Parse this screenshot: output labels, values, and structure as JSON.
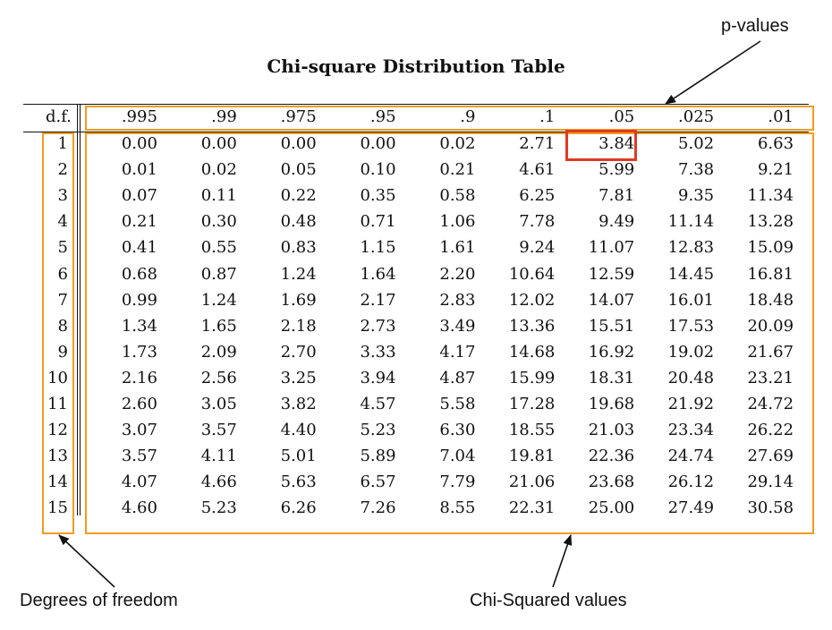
{
  "title": "Chi-square Distribution Table",
  "df_header": "d.f.",
  "p_values": [
    ".995",
    ".99",
    ".975",
    ".95",
    ".9",
    ".1",
    ".05",
    ".025",
    ".01"
  ],
  "rows": [
    {
      "df": "1",
      "values": [
        "0.00",
        "0.00",
        "0.00",
        "0.00",
        "0.02",
        "2.71",
        "3.84",
        "5.02",
        "6.63"
      ]
    },
    {
      "df": "2",
      "values": [
        "0.01",
        "0.02",
        "0.05",
        "0.10",
        "0.21",
        "4.61",
        "5.99",
        "7.38",
        "9.21"
      ]
    },
    {
      "df": "3",
      "values": [
        "0.07",
        "0.11",
        "0.22",
        "0.35",
        "0.58",
        "6.25",
        "7.81",
        "9.35",
        "11.34"
      ]
    },
    {
      "df": "4",
      "values": [
        "0.21",
        "0.30",
        "0.48",
        "0.71",
        "1.06",
        "7.78",
        "9.49",
        "11.14",
        "13.28"
      ]
    },
    {
      "df": "5",
      "values": [
        "0.41",
        "0.55",
        "0.83",
        "1.15",
        "1.61",
        "9.24",
        "11.07",
        "12.83",
        "15.09"
      ]
    },
    {
      "df": "6",
      "values": [
        "0.68",
        "0.87",
        "1.24",
        "1.64",
        "2.20",
        "10.64",
        "12.59",
        "14.45",
        "16.81"
      ]
    },
    {
      "df": "7",
      "values": [
        "0.99",
        "1.24",
        "1.69",
        "2.17",
        "2.83",
        "12.02",
        "14.07",
        "16.01",
        "18.48"
      ]
    },
    {
      "df": "8",
      "values": [
        "1.34",
        "1.65",
        "2.18",
        "2.73",
        "3.49",
        "13.36",
        "15.51",
        "17.53",
        "20.09"
      ]
    },
    {
      "df": "9",
      "values": [
        "1.73",
        "2.09",
        "2.70",
        "3.33",
        "4.17",
        "14.68",
        "16.92",
        "19.02",
        "21.67"
      ]
    },
    {
      "df": "10",
      "values": [
        "2.16",
        "2.56",
        "3.25",
        "3.94",
        "4.87",
        "15.99",
        "18.31",
        "20.48",
        "23.21"
      ]
    },
    {
      "df": "11",
      "values": [
        "2.60",
        "3.05",
        "3.82",
        "4.57",
        "5.58",
        "17.28",
        "19.68",
        "21.92",
        "24.72"
      ]
    },
    {
      "df": "12",
      "values": [
        "3.07",
        "3.57",
        "4.40",
        "5.23",
        "6.30",
        "18.55",
        "21.03",
        "23.34",
        "26.22"
      ]
    },
    {
      "df": "13",
      "values": [
        "3.57",
        "4.11",
        "5.01",
        "5.89",
        "7.04",
        "19.81",
        "22.36",
        "24.74",
        "27.69"
      ]
    },
    {
      "df": "14",
      "values": [
        "4.07",
        "4.66",
        "5.63",
        "6.57",
        "7.79",
        "21.06",
        "23.68",
        "26.12",
        "29.14"
      ]
    },
    {
      "df": "15",
      "values": [
        "4.60",
        "5.23",
        "6.26",
        "7.26",
        "8.55",
        "22.31",
        "25.00",
        "27.49",
        "30.58"
      ]
    }
  ],
  "highlight": {
    "df": "1",
    "p": ".05"
  },
  "annotations": {
    "p_values_label": "p-values",
    "df_label": "Degrees of freedom",
    "chi_label": "Chi-Squared values"
  },
  "colors": {
    "highlight_box": "#f39c1e",
    "selected_cell": "#e03a24"
  }
}
